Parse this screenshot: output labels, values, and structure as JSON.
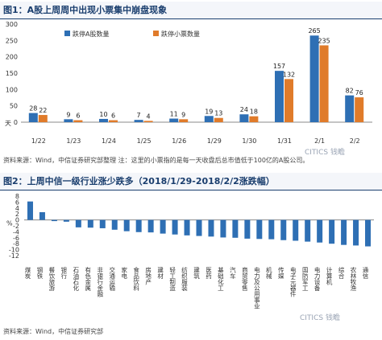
{
  "chart_data": [
    {
      "type": "bar",
      "title": "图1：A股上周周中出现小票集中崩盘现象",
      "categories": [
        "1/22",
        "1/23",
        "1/24",
        "1/25",
        "1/26",
        "1/29",
        "1/30",
        "1/31",
        "2/1",
        "2/2"
      ],
      "series": [
        {
          "name": "跌停A股数量",
          "color": "#2e6fb4",
          "values": [
            28,
            9,
            10,
            7,
            11,
            19,
            24,
            157,
            265,
            82
          ]
        },
        {
          "name": "跌停小票数量",
          "color": "#e07b2a",
          "values": [
            22,
            6,
            6,
            4,
            9,
            13,
            18,
            132,
            235,
            76
          ]
        }
      ],
      "ylim": [
        0,
        300
      ],
      "yticks": [
        0,
        50,
        100,
        150,
        200,
        250,
        300
      ],
      "y_unit_label": "天",
      "legend_position": "top-left",
      "grid": false,
      "source": "资料来源：Wind，中信证券研究部整理    注：这里的小票指的是每一天收盘后总市值低于100亿的A股公司。"
    },
    {
      "type": "bar",
      "title": "图2：上周中信一级行业涨少跌多（2018/1/29-2018/2/2涨跌幅）",
      "categories": [
        "煤炭",
        "钢铁",
        "餐饮旅游",
        "银行",
        "石油石化",
        "有色金属",
        "非银行金融",
        "交通运输",
        "家电",
        "食品饮料",
        "房地产",
        "建材",
        "轻工制造",
        "纺织服装",
        "建筑",
        "医药",
        "基础化工",
        "汽车",
        "商贸零售",
        "电力及公用事业",
        "机械",
        "传媒",
        "电子元器件",
        "国防军工",
        "电力设备",
        "计算机",
        "综合",
        "农林牧渔",
        "通信"
      ],
      "values": [
        6.2,
        2.6,
        -0.4,
        -0.6,
        -2.5,
        -2.6,
        -2.8,
        -3.3,
        -3.8,
        -4.1,
        -4.2,
        -4.6,
        -4.9,
        -5.2,
        -5.4,
        -5.6,
        -5.9,
        -6.0,
        -6.3,
        -6.4,
        -6.5,
        -6.8,
        -7.0,
        -7.3,
        -7.6,
        -8.0,
        -8.4,
        -8.6,
        -8.9
      ],
      "color": "#2e6fb4",
      "ylim": [
        -12,
        8
      ],
      "yticks": [
        -12,
        -10,
        -8,
        -6,
        -4,
        -2,
        0,
        2,
        4,
        6,
        8
      ],
      "y_unit_label": "%",
      "grid": false,
      "source": "资料来源：Wind，中信证券研究部"
    }
  ],
  "watermark": "CITICS 钱瞻"
}
